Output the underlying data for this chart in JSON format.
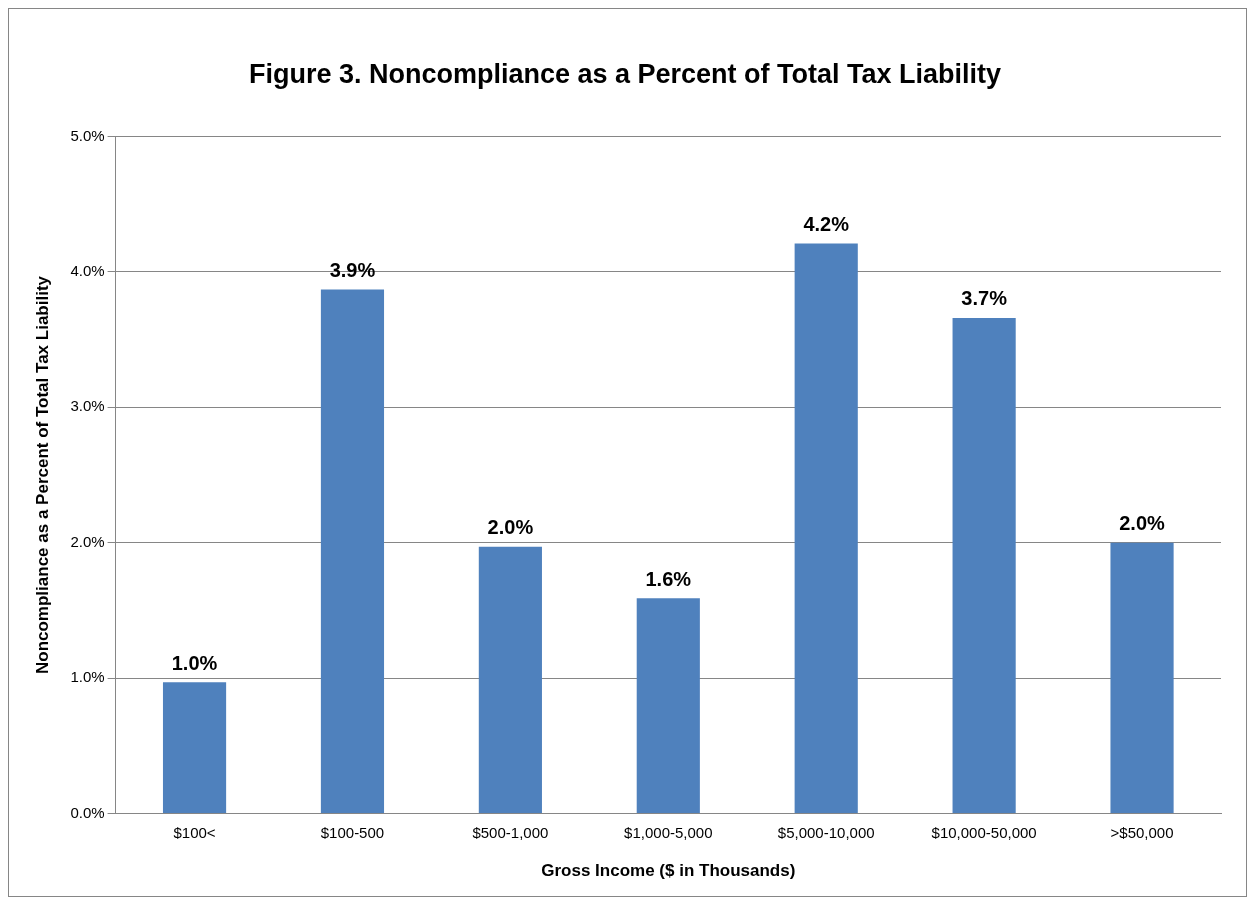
{
  "chart_data": {
    "type": "bar",
    "title": "Figure 3. Noncompliance as a Percent of Total Tax Liability",
    "xlabel": "Gross Income ($ in Thousands)",
    "ylabel": "Noncompliance as a Percent of Total Tax Liability",
    "categories": [
      "$100<",
      "$100-500",
      "$500-1,000",
      "$1,000-5,000",
      "$5,000-10,000",
      "$10,000-50,000",
      ">$50,000"
    ],
    "values": [
      0.97,
      3.87,
      1.97,
      1.59,
      4.21,
      3.66,
      2.0
    ],
    "value_labels": [
      "1.0%",
      "3.9%",
      "2.0%",
      "1.6%",
      "4.2%",
      "3.7%",
      "2.0%"
    ],
    "color": "#4f81bd",
    "ylim": [
      0,
      5
    ],
    "yticks": [
      {
        "value": 0,
        "label": "0.0%"
      },
      {
        "value": 1,
        "label": "1.0%"
      },
      {
        "value": 2,
        "label": "2.0%"
      },
      {
        "value": 3,
        "label": "3.0%"
      },
      {
        "value": 4,
        "label": "4.0%"
      },
      {
        "value": 5,
        "label": "5.0%"
      }
    ],
    "grid": "y",
    "legend": false
  }
}
